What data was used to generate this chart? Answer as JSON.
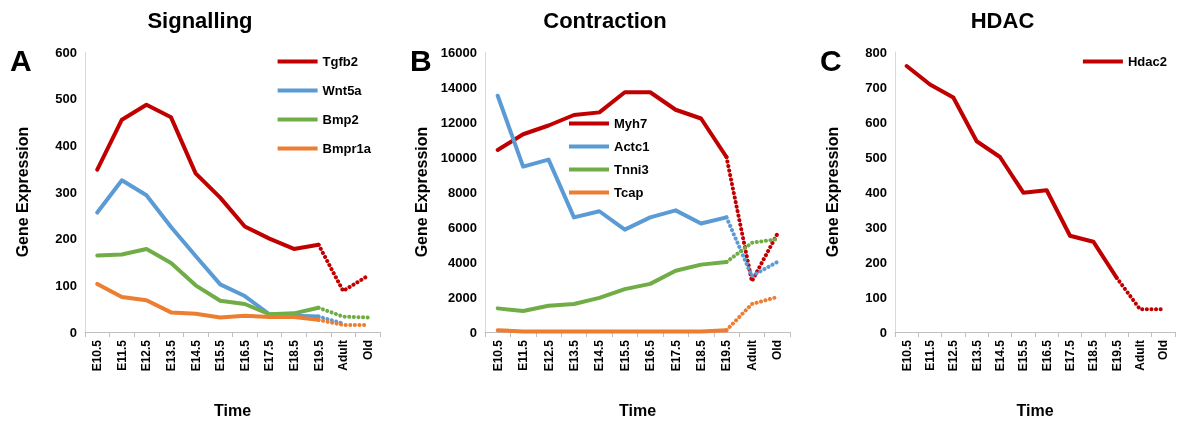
{
  "chart_data": [
    {
      "type": "line",
      "title": "Signalling",
      "xlabel": "Time",
      "ylabel": "Gene Expression",
      "annotations": [
        "A"
      ],
      "categories": [
        "E10.5",
        "E11.5",
        "E12.5",
        "E13.5",
        "E14.5",
        "E15.5",
        "E16.5",
        "E17.5",
        "E18.5",
        "E19.5",
        "Adult",
        "Old"
      ],
      "ylim": [
        0,
        600
      ],
      "yticks": [
        0,
        100,
        200,
        300,
        400,
        500,
        600
      ],
      "grid": false,
      "legend": "top right",
      "marker": "none",
      "series": [
        {
          "name": "Tgfb2",
          "color": "#c00000",
          "line_style": "solid",
          "values": [
            348,
            455,
            487,
            460,
            340,
            288,
            226,
            200,
            178,
            187,
            null,
            null
          ]
        },
        {
          "name": "Wnt5a",
          "color": "#5b9bd5",
          "line_style": "solid",
          "values": [
            256,
            325,
            293,
            225,
            163,
            102,
            77,
            38,
            35,
            33,
            null,
            null
          ]
        },
        {
          "name": "Bmp2",
          "color": "#70ad47",
          "line_style": "solid",
          "values": [
            164,
            166,
            178,
            148,
            100,
            67,
            60,
            38,
            40,
            52,
            null,
            null
          ]
        },
        {
          "name": "Bmpr1a",
          "color": "#ed7d31",
          "line_style": "solid",
          "values": [
            103,
            75,
            68,
            42,
            39,
            31,
            35,
            32,
            32,
            26,
            null,
            null
          ]
        },
        {
          "color": "#c00000",
          "line_style": "dotted",
          "values": [
            null,
            null,
            null,
            null,
            null,
            null,
            null,
            null,
            null,
            187,
            88,
            120
          ]
        },
        {
          "color": "#5b9bd5",
          "line_style": "dotted",
          "values": [
            null,
            null,
            null,
            null,
            null,
            null,
            null,
            null,
            null,
            33,
            18,
            null
          ]
        },
        {
          "color": "#70ad47",
          "line_style": "dotted",
          "values": [
            null,
            null,
            null,
            null,
            null,
            null,
            null,
            null,
            null,
            52,
            33,
            31
          ]
        },
        {
          "color": "#ed7d31",
          "line_style": "dotted",
          "values": [
            null,
            null,
            null,
            null,
            null,
            null,
            null,
            null,
            null,
            26,
            15,
            15
          ]
        }
      ]
    },
    {
      "type": "line",
      "title": "Contraction",
      "xlabel": "Time",
      "ylabel": "Gene Expression",
      "annotations": [
        "B"
      ],
      "categories": [
        "E10.5",
        "E11.5",
        "E12.5",
        "E13.5",
        "E14.5",
        "E15.5",
        "E16.5",
        "E17.5",
        "E18.5",
        "E19.5",
        "Adult",
        "Old"
      ],
      "ylim": [
        0,
        16000
      ],
      "yticks": [
        0,
        2000,
        4000,
        6000,
        8000,
        10000,
        12000,
        14000,
        16000
      ],
      "grid": false,
      "legend": "top",
      "marker": "none",
      "series": [
        {
          "name": "Myh7",
          "color": "#c00000",
          "line_style": "solid",
          "values": [
            10400,
            11300,
            11800,
            12400,
            12550,
            13700,
            13700,
            12700,
            12200,
            10000,
            null,
            null
          ]
        },
        {
          "name": "Actc1",
          "color": "#5b9bd5",
          "line_style": "solid",
          "values": [
            13500,
            9450,
            9850,
            6550,
            6900,
            5850,
            6550,
            6950,
            6200,
            6550,
            null,
            null
          ]
        },
        {
          "name": "Tnni3",
          "color": "#70ad47",
          "line_style": "solid",
          "values": [
            1350,
            1200,
            1500,
            1600,
            1950,
            2450,
            2750,
            3500,
            3850,
            4000,
            null,
            null
          ]
        },
        {
          "name": "Tcap",
          "color": "#ed7d31",
          "line_style": "solid",
          "values": [
            100,
            30,
            30,
            30,
            30,
            30,
            30,
            30,
            30,
            100,
            null,
            null
          ]
        },
        {
          "color": "#c00000",
          "line_style": "dotted",
          "values": [
            null,
            null,
            null,
            null,
            null,
            null,
            null,
            null,
            null,
            10000,
            2900,
            5600
          ]
        },
        {
          "color": "#5b9bd5",
          "line_style": "dotted",
          "values": [
            null,
            null,
            null,
            null,
            null,
            null,
            null,
            null,
            null,
            6550,
            3200,
            4000
          ]
        },
        {
          "color": "#70ad47",
          "line_style": "dotted",
          "values": [
            null,
            null,
            null,
            null,
            null,
            null,
            null,
            null,
            null,
            4000,
            5100,
            5300
          ]
        },
        {
          "color": "#ed7d31",
          "line_style": "dotted",
          "values": [
            null,
            null,
            null,
            null,
            null,
            null,
            null,
            null,
            null,
            100,
            1600,
            2000
          ]
        }
      ]
    },
    {
      "type": "line",
      "title": "HDAC",
      "xlabel": "Time",
      "ylabel": "Gene Expression",
      "annotations": [
        "C"
      ],
      "categories": [
        "E10.5",
        "E11.5",
        "E12.5",
        "E13.5",
        "E14.5",
        "E15.5",
        "E16.5",
        "E17.5",
        "E18.5",
        "E19.5",
        "Adult",
        "Old"
      ],
      "ylim": [
        0,
        800
      ],
      "yticks": [
        0,
        100,
        200,
        300,
        400,
        500,
        600,
        700,
        800
      ],
      "grid": false,
      "legend": "top right",
      "marker": "none",
      "series": [
        {
          "name": "Hdac2",
          "color": "#c00000",
          "line_style": "solid",
          "values": [
            760,
            707,
            670,
            545,
            500,
            398,
            405,
            275,
            258,
            155,
            null,
            null
          ]
        },
        {
          "color": "#c00000",
          "line_style": "dotted",
          "values": [
            null,
            null,
            null,
            null,
            null,
            null,
            null,
            null,
            null,
            155,
            65,
            65
          ]
        }
      ]
    }
  ]
}
